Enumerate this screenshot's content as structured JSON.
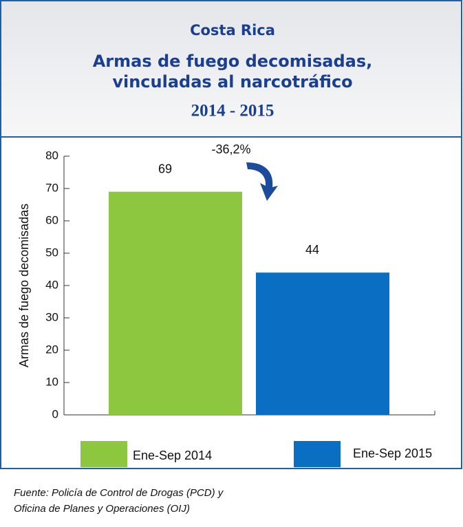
{
  "chart_data": {
    "type": "bar",
    "title": [
      "Costa Rica",
      "Armas de fuego decomisadas,",
      "vinculadas al narcotráfico"
    ],
    "subtitle": "2014 - 2015",
    "y_label": "Armas de fuego decomisadas",
    "annotation": "-36,2%",
    "categories": [
      null
    ],
    "series": [
      {
        "name": "Ene-Sep 2014",
        "color": "#8dc63f",
        "values": [
          69
        ]
      },
      {
        "name": "Ene-Sep 2015",
        "color": "#0a6fc2",
        "values": [
          44
        ]
      }
    ],
    "ylim": [
      0,
      80
    ],
    "yticks": [
      0,
      10,
      20,
      30,
      40,
      50,
      60,
      70,
      80
    ],
    "grid": false,
    "source": [
      "Fuente: Policía de Control de Drogas (PCD) y",
      "Oficina de Planes y Operaciones (OIJ)"
    ]
  }
}
